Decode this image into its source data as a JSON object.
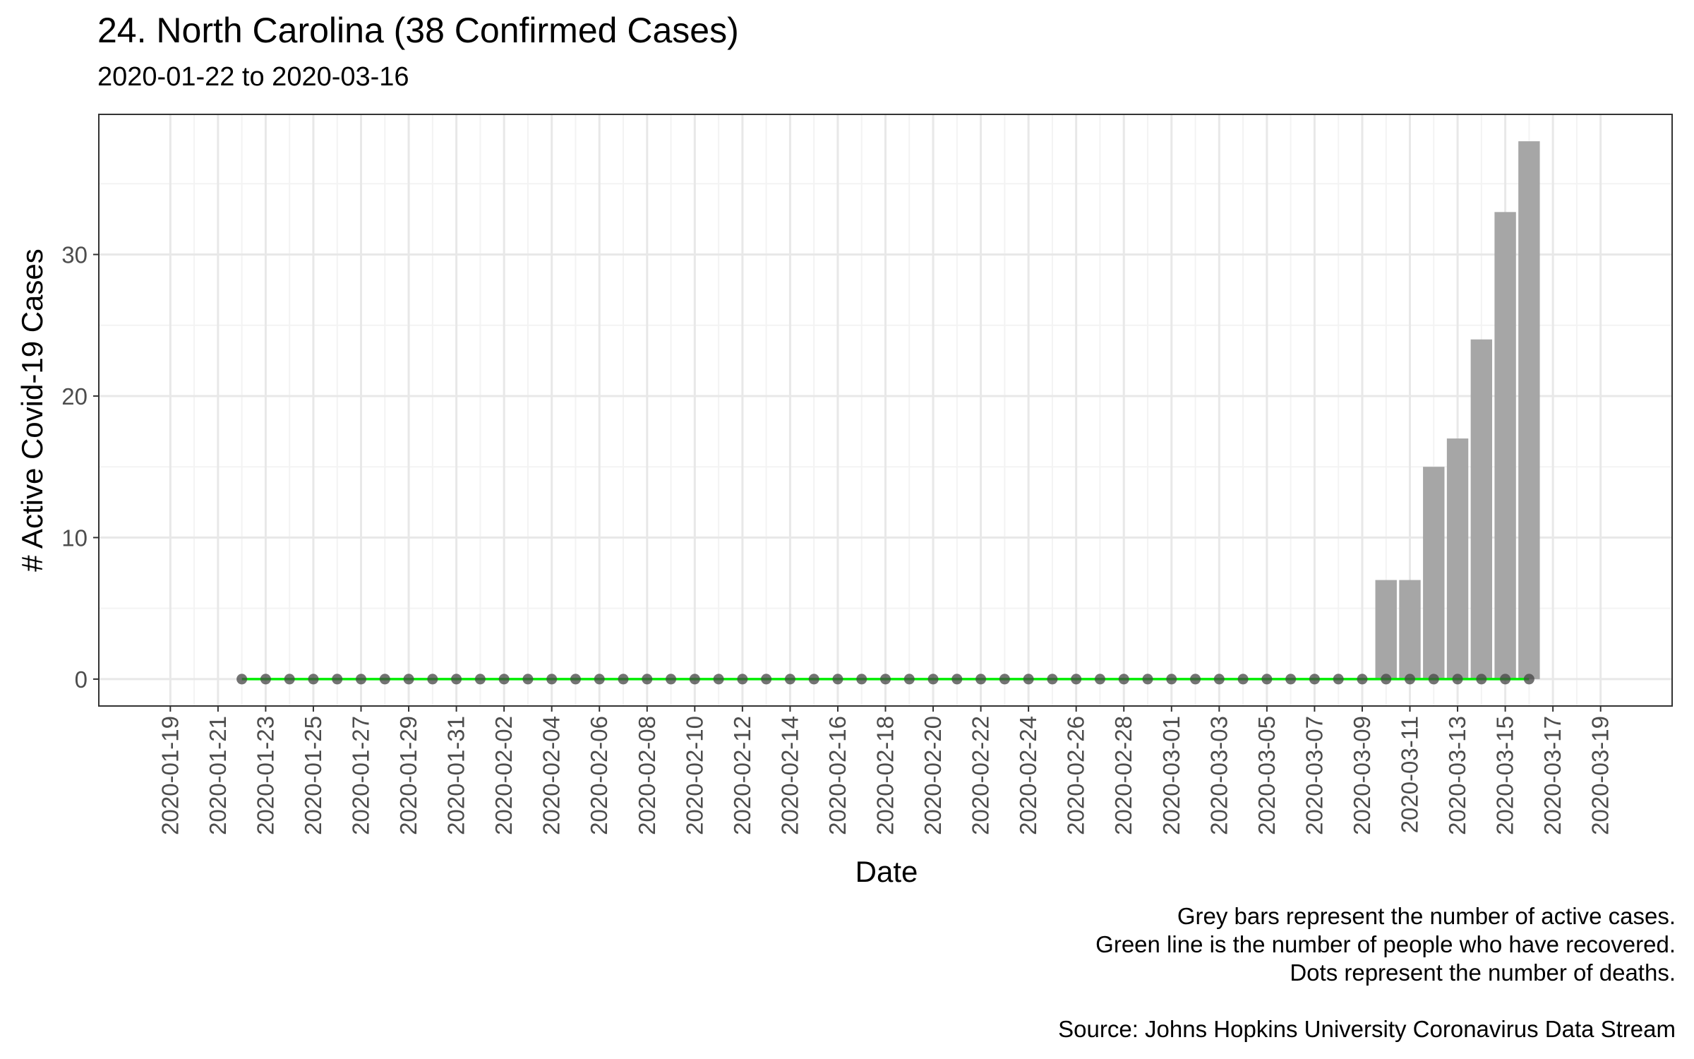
{
  "title": "24. North Carolina (38 Confirmed Cases)",
  "subtitle": "2020-01-22 to 2020-03-16",
  "caption": [
    "Grey bars represent the number of active cases.",
    "Green line is the number of people who have recovered.",
    "Dots represent the number of deaths.",
    "",
    "Source: Johns Hopkins University Coronavirus Data Stream"
  ],
  "colors": {
    "bar": "#a6a6a6",
    "recovered_line": "#00ee00",
    "death_dot": "#444444",
    "grid_major": "#e8e8e8",
    "grid_minor": "#f3f3f3",
    "panel_border": "#333333"
  },
  "chart_data": {
    "type": "bar",
    "xlabel": "Date",
    "ylabel": "# Active Covid-19 Cases",
    "xlim": [
      "2020-01-19",
      "2020-03-19"
    ],
    "ylim": [
      0,
      38
    ],
    "x_ticks": [
      "2020-01-19",
      "2020-01-21",
      "2020-01-23",
      "2020-01-25",
      "2020-01-27",
      "2020-01-29",
      "2020-01-31",
      "2020-02-02",
      "2020-02-04",
      "2020-02-06",
      "2020-02-08",
      "2020-02-10",
      "2020-02-12",
      "2020-02-14",
      "2020-02-16",
      "2020-02-18",
      "2020-02-20",
      "2020-02-22",
      "2020-02-24",
      "2020-02-26",
      "2020-02-28",
      "2020-03-01",
      "2020-03-03",
      "2020-03-05",
      "2020-03-07",
      "2020-03-09",
      "2020-03-11",
      "2020-03-13",
      "2020-03-15",
      "2020-03-17",
      "2020-03-19"
    ],
    "y_ticks": [
      0,
      10,
      20,
      30
    ],
    "grid": true,
    "legend": "none",
    "dates": [
      "2020-01-22",
      "2020-01-23",
      "2020-01-24",
      "2020-01-25",
      "2020-01-26",
      "2020-01-27",
      "2020-01-28",
      "2020-01-29",
      "2020-01-30",
      "2020-01-31",
      "2020-02-01",
      "2020-02-02",
      "2020-02-03",
      "2020-02-04",
      "2020-02-05",
      "2020-02-06",
      "2020-02-07",
      "2020-02-08",
      "2020-02-09",
      "2020-02-10",
      "2020-02-11",
      "2020-02-12",
      "2020-02-13",
      "2020-02-14",
      "2020-02-15",
      "2020-02-16",
      "2020-02-17",
      "2020-02-18",
      "2020-02-19",
      "2020-02-20",
      "2020-02-21",
      "2020-02-22",
      "2020-02-23",
      "2020-02-24",
      "2020-02-25",
      "2020-02-26",
      "2020-02-27",
      "2020-02-28",
      "2020-02-29",
      "2020-03-01",
      "2020-03-02",
      "2020-03-03",
      "2020-03-04",
      "2020-03-05",
      "2020-03-06",
      "2020-03-07",
      "2020-03-08",
      "2020-03-09",
      "2020-03-10",
      "2020-03-11",
      "2020-03-12",
      "2020-03-13",
      "2020-03-14",
      "2020-03-15",
      "2020-03-16"
    ],
    "active": [
      0,
      0,
      0,
      0,
      0,
      0,
      0,
      0,
      0,
      0,
      0,
      0,
      0,
      0,
      0,
      0,
      0,
      0,
      0,
      0,
      0,
      0,
      0,
      0,
      0,
      0,
      0,
      0,
      0,
      0,
      0,
      0,
      0,
      0,
      0,
      0,
      0,
      0,
      0,
      0,
      0,
      0,
      0,
      0,
      0,
      0,
      0,
      0,
      7,
      7,
      15,
      17,
      24,
      33,
      38
    ],
    "recovered": [
      0,
      0,
      0,
      0,
      0,
      0,
      0,
      0,
      0,
      0,
      0,
      0,
      0,
      0,
      0,
      0,
      0,
      0,
      0,
      0,
      0,
      0,
      0,
      0,
      0,
      0,
      0,
      0,
      0,
      0,
      0,
      0,
      0,
      0,
      0,
      0,
      0,
      0,
      0,
      0,
      0,
      0,
      0,
      0,
      0,
      0,
      0,
      0,
      0,
      0,
      0,
      0,
      0,
      0,
      0
    ],
    "deaths": [
      0,
      0,
      0,
      0,
      0,
      0,
      0,
      0,
      0,
      0,
      0,
      0,
      0,
      0,
      0,
      0,
      0,
      0,
      0,
      0,
      0,
      0,
      0,
      0,
      0,
      0,
      0,
      0,
      0,
      0,
      0,
      0,
      0,
      0,
      0,
      0,
      0,
      0,
      0,
      0,
      0,
      0,
      0,
      0,
      0,
      0,
      0,
      0,
      0,
      0,
      0,
      0,
      0,
      0,
      0
    ]
  }
}
